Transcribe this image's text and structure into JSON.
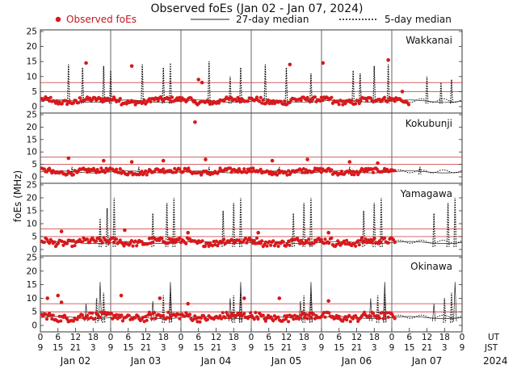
{
  "title": "Observed foEs (Jan 02 - Jan 07, 2024)",
  "legend": {
    "observed": "Observed foEs",
    "median27": "27-day median",
    "median5": "5-day median"
  },
  "ylabel": "foEs (MHz)",
  "ut_label": "UT",
  "jst_label": "JST",
  "year_label": "2024",
  "colors": {
    "observed": "#d7191c",
    "median27": "#222222",
    "median5": "#111111",
    "threshold": "#cc3333"
  },
  "chart_data": {
    "type": "line",
    "title": "Observed foEs (Jan 02 - Jan 07, 2024)",
    "ylabel": "foEs (MHz)",
    "xlabel": "",
    "x_range_days": [
      0,
      6
    ],
    "ylim": [
      0,
      25
    ],
    "yticks": [
      0,
      5,
      10,
      15,
      20,
      25
    ],
    "grid": false,
    "legend_placement": "top",
    "days": [
      "Jan 02",
      "Jan 03",
      "Jan 04",
      "Jan 05",
      "Jan 06",
      "Jan 07"
    ],
    "ut_ticks": [
      "0",
      "6",
      "12",
      "18",
      "0",
      "6",
      "12",
      "18",
      "0",
      "6",
      "12",
      "18",
      "0",
      "6",
      "12",
      "18",
      "0",
      "6",
      "12",
      "18",
      "0",
      "6",
      "12",
      "18",
      "0"
    ],
    "jst_ticks": [
      "9",
      "15",
      "21",
      "3",
      "9",
      "15",
      "21",
      "3",
      "9",
      "15",
      "21",
      "3",
      "9",
      "15",
      "21",
      "3",
      "9",
      "15",
      "21",
      "3",
      "9",
      "15",
      "21",
      "3",
      "9"
    ],
    "reference_lines_mhz": [
      5,
      8
    ],
    "stations": [
      {
        "name": "Wakkanai",
        "observed_base": 2.0,
        "observed_spread": 0.8,
        "outliers": [
          [
            0.65,
            14.5
          ],
          [
            1.3,
            13.5
          ],
          [
            2.25,
            9
          ],
          [
            2.3,
            8
          ],
          [
            3.55,
            14
          ],
          [
            4.02,
            14.5
          ],
          [
            4.95,
            15.5
          ],
          [
            5.15,
            5
          ]
        ],
        "median5_spikes": [
          [
            0.4,
            14
          ],
          [
            0.6,
            13
          ],
          [
            0.9,
            13.5
          ],
          [
            1.0,
            12
          ],
          [
            1.45,
            14
          ],
          [
            1.75,
            13
          ],
          [
            1.85,
            14.5
          ],
          [
            2.4,
            15
          ],
          [
            2.7,
            10
          ],
          [
            2.85,
            13
          ],
          [
            3.2,
            14
          ],
          [
            3.5,
            13
          ],
          [
            3.85,
            11
          ],
          [
            4.45,
            12
          ],
          [
            4.55,
            11
          ],
          [
            4.75,
            13.5
          ],
          [
            4.95,
            14
          ],
          [
            5.5,
            10
          ],
          [
            5.7,
            8
          ],
          [
            5.85,
            9
          ]
        ],
        "observed_gaps": [
          [
            5.25,
            6.0
          ]
        ]
      },
      {
        "name": "Kokubunji",
        "observed_base": 2.2,
        "observed_spread": 0.9,
        "outliers": [
          [
            0.4,
            7.5
          ],
          [
            0.9,
            6.5
          ],
          [
            1.3,
            6
          ],
          [
            1.75,
            6.5
          ],
          [
            2.2,
            22
          ],
          [
            2.35,
            7
          ],
          [
            3.3,
            6.5
          ],
          [
            3.8,
            7
          ],
          [
            4.4,
            6
          ],
          [
            4.8,
            5.5
          ]
        ],
        "median5_spikes": [
          [
            0.45,
            4
          ],
          [
            1.4,
            4
          ],
          [
            2.4,
            4
          ],
          [
            3.4,
            4
          ],
          [
            4.4,
            4
          ],
          [
            5.4,
            4
          ]
        ],
        "observed_gaps": [
          [
            5.05,
            6.0
          ]
        ]
      },
      {
        "name": "Yamagawa",
        "observed_base": 3.0,
        "observed_spread": 1.2,
        "outliers": [
          [
            0.3,
            7
          ],
          [
            1.2,
            7.5
          ],
          [
            2.1,
            6.5
          ],
          [
            3.1,
            6.5
          ],
          [
            4.1,
            6.5
          ]
        ],
        "median5_spikes": [
          [
            0.85,
            12
          ],
          [
            0.95,
            16
          ],
          [
            1.05,
            20
          ],
          [
            1.6,
            14
          ],
          [
            1.8,
            18
          ],
          [
            1.9,
            20
          ],
          [
            2.6,
            15
          ],
          [
            2.75,
            18
          ],
          [
            2.85,
            20
          ],
          [
            3.6,
            14
          ],
          [
            3.75,
            18
          ],
          [
            3.85,
            20
          ],
          [
            4.6,
            15
          ],
          [
            4.75,
            18
          ],
          [
            4.85,
            20
          ],
          [
            5.6,
            14
          ],
          [
            5.8,
            18
          ],
          [
            5.9,
            20
          ]
        ],
        "observed_gaps": [
          [
            5.05,
            6.0
          ]
        ]
      },
      {
        "name": "Okinawa",
        "observed_base": 3.2,
        "observed_spread": 1.3,
        "outliers": [
          [
            0.1,
            10
          ],
          [
            0.25,
            11
          ],
          [
            0.3,
            8.5
          ],
          [
            1.15,
            11
          ],
          [
            1.7,
            10
          ],
          [
            2.1,
            8
          ],
          [
            2.9,
            10
          ],
          [
            3.4,
            10
          ],
          [
            4.1,
            9
          ]
        ],
        "median5_spikes": [
          [
            0.8,
            10
          ],
          [
            0.9,
            12
          ],
          [
            1.75,
            11
          ],
          [
            1.85,
            12
          ],
          [
            2.75,
            11
          ],
          [
            2.85,
            12
          ],
          [
            3.75,
            11
          ],
          [
            3.85,
            12
          ],
          [
            4.8,
            11
          ],
          [
            4.9,
            12
          ],
          [
            5.75,
            10
          ],
          [
            5.85,
            12
          ]
        ],
        "median27_spikes": [
          [
            0.65,
            8
          ],
          [
            0.85,
            16
          ],
          [
            1.6,
            9
          ],
          [
            1.85,
            16
          ],
          [
            2.7,
            10
          ],
          [
            2.85,
            16
          ],
          [
            3.7,
            9
          ],
          [
            3.85,
            16
          ],
          [
            4.7,
            10
          ],
          [
            4.9,
            16
          ],
          [
            5.6,
            8
          ],
          [
            5.9,
            16
          ]
        ],
        "observed_gaps": [
          [
            5.05,
            6.0
          ]
        ]
      }
    ]
  }
}
